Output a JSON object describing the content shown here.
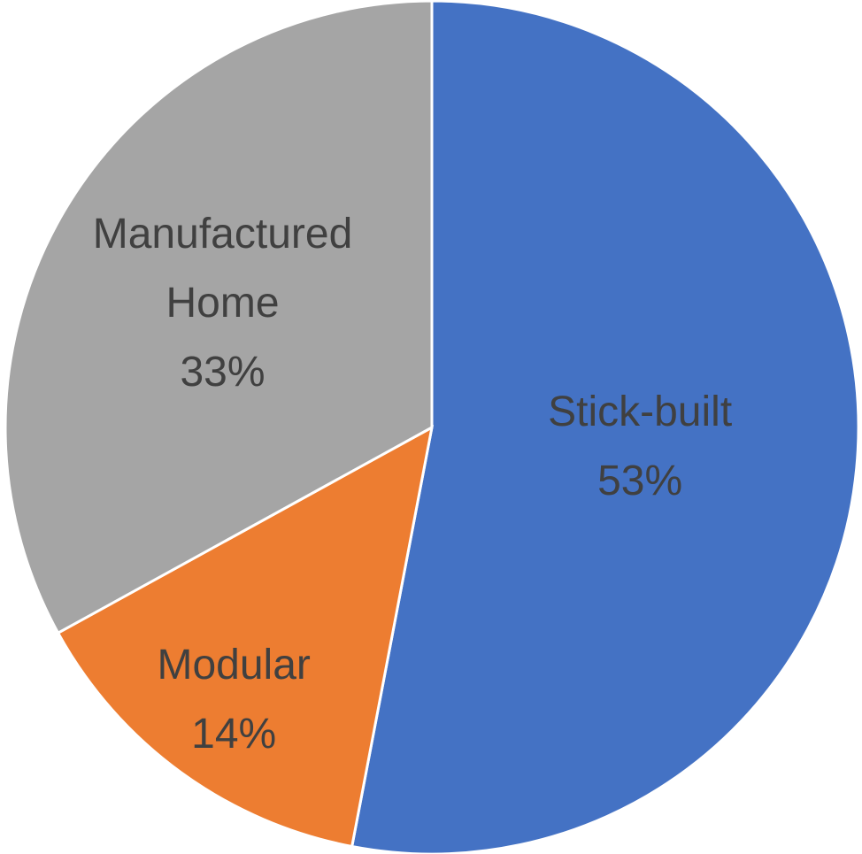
{
  "chart_data": {
    "type": "pie",
    "categories": [
      "Stick-built",
      "Modular",
      "Manufactured Home"
    ],
    "values": [
      53,
      14,
      33
    ],
    "value_labels": [
      "53%",
      "14%",
      "33%"
    ],
    "colors": [
      "#4472c4",
      "#ed7d31",
      "#a5a5a5"
    ]
  }
}
